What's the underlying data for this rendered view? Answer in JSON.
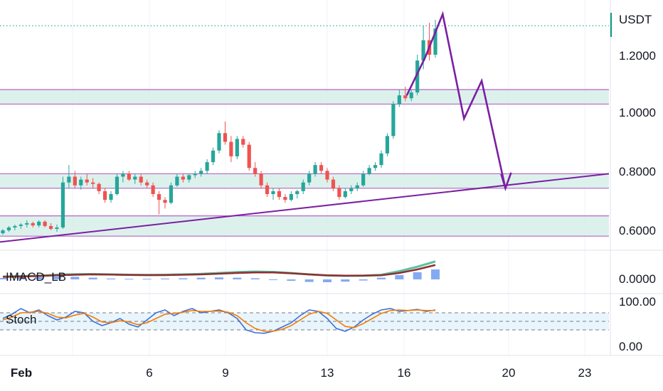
{
  "header": {
    "quote_currency": "USDT"
  },
  "price_axis": {
    "ticks": [
      "1.2000",
      "1.0000",
      "0.8000",
      "0.6000"
    ]
  },
  "indicators": {
    "imacd": {
      "label": "IMACD_LB",
      "axis_tick": "0.0000"
    },
    "stoch": {
      "label": "Stoch",
      "axis_ticks": [
        "100.00",
        "0.00"
      ]
    }
  },
  "time_axis": {
    "labels": [
      "Feb",
      "6",
      "9",
      "13",
      "16",
      "20",
      "23"
    ]
  },
  "colors": {
    "up": "#26a69a",
    "down": "#ef5350",
    "zone_fill": "#d1ece6",
    "zone_line": "#9c27b0",
    "trend": "#7b1fa2",
    "price_line": "#089981",
    "macd_fast": "#5fbfa0",
    "macd_slow": "#8e2f2f",
    "hist": "#5b8def",
    "stoch_k": "#3f6fd8",
    "stoch_d": "#f57c00",
    "stoch_band": "#e3f2fd"
  },
  "chart_data": {
    "type": "candlestick",
    "x_axis": {
      "labels": [
        "Feb",
        "6",
        "9",
        "13",
        "16",
        "20",
        "23"
      ],
      "label_dates": [
        1,
        6,
        9,
        13,
        16,
        20,
        23
      ]
    },
    "y_axis": {
      "ticks": [
        1.2,
        1.0,
        0.8,
        0.6
      ],
      "range": [
        0.53,
        1.35
      ]
    },
    "last_price_line": 1.3,
    "candles": [
      {
        "o": 0.585,
        "h": 0.6,
        "l": 0.58,
        "c": 0.595
      },
      {
        "o": 0.595,
        "h": 0.61,
        "l": 0.59,
        "c": 0.605
      },
      {
        "o": 0.605,
        "h": 0.615,
        "l": 0.595,
        "c": 0.61
      },
      {
        "o": 0.61,
        "h": 0.62,
        "l": 0.6,
        "c": 0.615
      },
      {
        "o": 0.615,
        "h": 0.63,
        "l": 0.605,
        "c": 0.62
      },
      {
        "o": 0.62,
        "h": 0.625,
        "l": 0.605,
        "c": 0.612
      },
      {
        "o": 0.612,
        "h": 0.63,
        "l": 0.605,
        "c": 0.625
      },
      {
        "o": 0.625,
        "h": 0.63,
        "l": 0.605,
        "c": 0.61
      },
      {
        "o": 0.61,
        "h": 0.62,
        "l": 0.595,
        "c": 0.6
      },
      {
        "o": 0.6,
        "h": 0.615,
        "l": 0.59,
        "c": 0.605
      },
      {
        "o": 0.605,
        "h": 0.78,
        "l": 0.6,
        "c": 0.76
      },
      {
        "o": 0.76,
        "h": 0.82,
        "l": 0.74,
        "c": 0.78
      },
      {
        "o": 0.78,
        "h": 0.8,
        "l": 0.74,
        "c": 0.75
      },
      {
        "o": 0.75,
        "h": 0.78,
        "l": 0.735,
        "c": 0.77
      },
      {
        "o": 0.77,
        "h": 0.79,
        "l": 0.75,
        "c": 0.76
      },
      {
        "o": 0.76,
        "h": 0.775,
        "l": 0.74,
        "c": 0.755
      },
      {
        "o": 0.755,
        "h": 0.76,
        "l": 0.72,
        "c": 0.73
      },
      {
        "o": 0.73,
        "h": 0.74,
        "l": 0.69,
        "c": 0.7
      },
      {
        "o": 0.7,
        "h": 0.73,
        "l": 0.69,
        "c": 0.72
      },
      {
        "o": 0.72,
        "h": 0.79,
        "l": 0.715,
        "c": 0.78
      },
      {
        "o": 0.78,
        "h": 0.8,
        "l": 0.76,
        "c": 0.79
      },
      {
        "o": 0.79,
        "h": 0.8,
        "l": 0.765,
        "c": 0.77
      },
      {
        "o": 0.77,
        "h": 0.79,
        "l": 0.755,
        "c": 0.78
      },
      {
        "o": 0.78,
        "h": 0.79,
        "l": 0.75,
        "c": 0.76
      },
      {
        "o": 0.76,
        "h": 0.77,
        "l": 0.74,
        "c": 0.75
      },
      {
        "o": 0.75,
        "h": 0.76,
        "l": 0.71,
        "c": 0.72
      },
      {
        "o": 0.72,
        "h": 0.73,
        "l": 0.65,
        "c": 0.7
      },
      {
        "o": 0.7,
        "h": 0.71,
        "l": 0.67,
        "c": 0.69
      },
      {
        "o": 0.69,
        "h": 0.76,
        "l": 0.685,
        "c": 0.75
      },
      {
        "o": 0.75,
        "h": 0.79,
        "l": 0.745,
        "c": 0.78
      },
      {
        "o": 0.78,
        "h": 0.79,
        "l": 0.76,
        "c": 0.77
      },
      {
        "o": 0.77,
        "h": 0.79,
        "l": 0.76,
        "c": 0.785
      },
      {
        "o": 0.785,
        "h": 0.8,
        "l": 0.775,
        "c": 0.79
      },
      {
        "o": 0.79,
        "h": 0.81,
        "l": 0.78,
        "c": 0.8
      },
      {
        "o": 0.8,
        "h": 0.84,
        "l": 0.79,
        "c": 0.83
      },
      {
        "o": 0.83,
        "h": 0.88,
        "l": 0.82,
        "c": 0.87
      },
      {
        "o": 0.87,
        "h": 0.94,
        "l": 0.86,
        "c": 0.93
      },
      {
        "o": 0.93,
        "h": 0.97,
        "l": 0.89,
        "c": 0.9
      },
      {
        "o": 0.9,
        "h": 0.92,
        "l": 0.83,
        "c": 0.85
      },
      {
        "o": 0.85,
        "h": 0.92,
        "l": 0.84,
        "c": 0.91
      },
      {
        "o": 0.91,
        "h": 0.92,
        "l": 0.88,
        "c": 0.89
      },
      {
        "o": 0.89,
        "h": 0.9,
        "l": 0.8,
        "c": 0.81
      },
      {
        "o": 0.81,
        "h": 0.83,
        "l": 0.78,
        "c": 0.79
      },
      {
        "o": 0.79,
        "h": 0.8,
        "l": 0.74,
        "c": 0.75
      },
      {
        "o": 0.75,
        "h": 0.76,
        "l": 0.71,
        "c": 0.72
      },
      {
        "o": 0.72,
        "h": 0.74,
        "l": 0.7,
        "c": 0.73
      },
      {
        "o": 0.73,
        "h": 0.74,
        "l": 0.7,
        "c": 0.71
      },
      {
        "o": 0.71,
        "h": 0.72,
        "l": 0.69,
        "c": 0.7
      },
      {
        "o": 0.7,
        "h": 0.73,
        "l": 0.695,
        "c": 0.72
      },
      {
        "o": 0.72,
        "h": 0.735,
        "l": 0.705,
        "c": 0.73
      },
      {
        "o": 0.73,
        "h": 0.77,
        "l": 0.72,
        "c": 0.76
      },
      {
        "o": 0.76,
        "h": 0.8,
        "l": 0.75,
        "c": 0.79
      },
      {
        "o": 0.79,
        "h": 0.83,
        "l": 0.78,
        "c": 0.82
      },
      {
        "o": 0.82,
        "h": 0.83,
        "l": 0.79,
        "c": 0.8
      },
      {
        "o": 0.8,
        "h": 0.81,
        "l": 0.76,
        "c": 0.77
      },
      {
        "o": 0.77,
        "h": 0.78,
        "l": 0.73,
        "c": 0.74
      },
      {
        "o": 0.74,
        "h": 0.75,
        "l": 0.7,
        "c": 0.71
      },
      {
        "o": 0.71,
        "h": 0.74,
        "l": 0.705,
        "c": 0.73
      },
      {
        "o": 0.73,
        "h": 0.75,
        "l": 0.72,
        "c": 0.74
      },
      {
        "o": 0.74,
        "h": 0.76,
        "l": 0.73,
        "c": 0.75
      },
      {
        "o": 0.75,
        "h": 0.8,
        "l": 0.745,
        "c": 0.79
      },
      {
        "o": 0.79,
        "h": 0.82,
        "l": 0.785,
        "c": 0.81
      },
      {
        "o": 0.81,
        "h": 0.83,
        "l": 0.8,
        "c": 0.82
      },
      {
        "o": 0.82,
        "h": 0.87,
        "l": 0.81,
        "c": 0.86
      },
      {
        "o": 0.86,
        "h": 0.93,
        "l": 0.85,
        "c": 0.92
      },
      {
        "o": 0.92,
        "h": 1.04,
        "l": 0.91,
        "c": 1.03
      },
      {
        "o": 1.03,
        "h": 1.08,
        "l": 1.02,
        "c": 1.06
      },
      {
        "o": 1.06,
        "h": 1.09,
        "l": 1.04,
        "c": 1.05
      },
      {
        "o": 1.05,
        "h": 1.08,
        "l": 1.04,
        "c": 1.07
      },
      {
        "o": 1.07,
        "h": 1.2,
        "l": 1.06,
        "c": 1.18
      },
      {
        "o": 1.18,
        "h": 1.3,
        "l": 1.15,
        "c": 1.25
      },
      {
        "o": 1.25,
        "h": 1.31,
        "l": 1.18,
        "c": 1.2
      },
      {
        "o": 1.2,
        "h": 1.32,
        "l": 1.19,
        "c": 1.29
      }
    ],
    "zones": [
      [
        1.03,
        1.08
      ],
      [
        0.74,
        0.79
      ],
      [
        0.575,
        0.645
      ]
    ],
    "trendline": {
      "from": [
        0.0,
        0.555
      ],
      "to": [
        1.0,
        0.79
      ]
    },
    "projection": [
      [
        0.668,
        1.06
      ],
      [
        0.698,
        1.19
      ],
      [
        0.727,
        1.34
      ],
      [
        0.762,
        0.98
      ],
      [
        0.791,
        1.11
      ],
      [
        0.83,
        0.74
      ]
    ],
    "macd": {
      "fast": [
        0.4,
        0.42,
        0.45,
        0.5,
        0.53,
        0.54,
        0.52,
        0.5,
        0.49,
        0.5,
        0.52,
        0.55,
        0.6,
        0.65,
        0.68,
        0.66,
        0.6,
        0.52,
        0.46,
        0.44,
        0.45,
        0.5,
        0.7,
        0.95,
        1.25
      ],
      "slow": [
        0.38,
        0.4,
        0.43,
        0.47,
        0.5,
        0.52,
        0.51,
        0.49,
        0.48,
        0.48,
        0.5,
        0.52,
        0.56,
        0.6,
        0.63,
        0.63,
        0.58,
        0.52,
        0.47,
        0.45,
        0.45,
        0.47,
        0.6,
        0.8,
        1.05
      ],
      "histogram": [
        0.05,
        0.06,
        0.08,
        0.1,
        0.09,
        0.06,
        0.03,
        0.02,
        0.02,
        0.03,
        0.04,
        0.06,
        0.07,
        0.06,
        0.04,
        0.0,
        -0.05,
        -0.09,
        -0.1,
        -0.08,
        -0.04,
        0.06,
        0.15,
        0.25,
        0.35
      ]
    },
    "stoch": {
      "k": [
        60,
        75,
        95,
        80,
        90,
        70,
        55,
        65,
        85,
        80,
        50,
        35,
        45,
        60,
        40,
        30,
        55,
        80,
        90,
        70,
        85,
        95,
        80,
        85,
        90,
        80,
        60,
        20,
        10,
        8,
        15,
        30,
        45,
        70,
        90,
        85,
        60,
        25,
        15,
        30,
        55,
        75,
        90,
        95,
        85,
        88,
        92,
        85,
        90
      ],
      "d": [
        55,
        65,
        80,
        82,
        85,
        78,
        65,
        62,
        72,
        78,
        65,
        48,
        45,
        52,
        48,
        38,
        45,
        60,
        75,
        78,
        82,
        88,
        85,
        85,
        86,
        82,
        70,
        45,
        25,
        15,
        15,
        22,
        35,
        55,
        75,
        85,
        78,
        55,
        32,
        28,
        42,
        60,
        78,
        88,
        90,
        88,
        90,
        88,
        88
      ]
    }
  }
}
